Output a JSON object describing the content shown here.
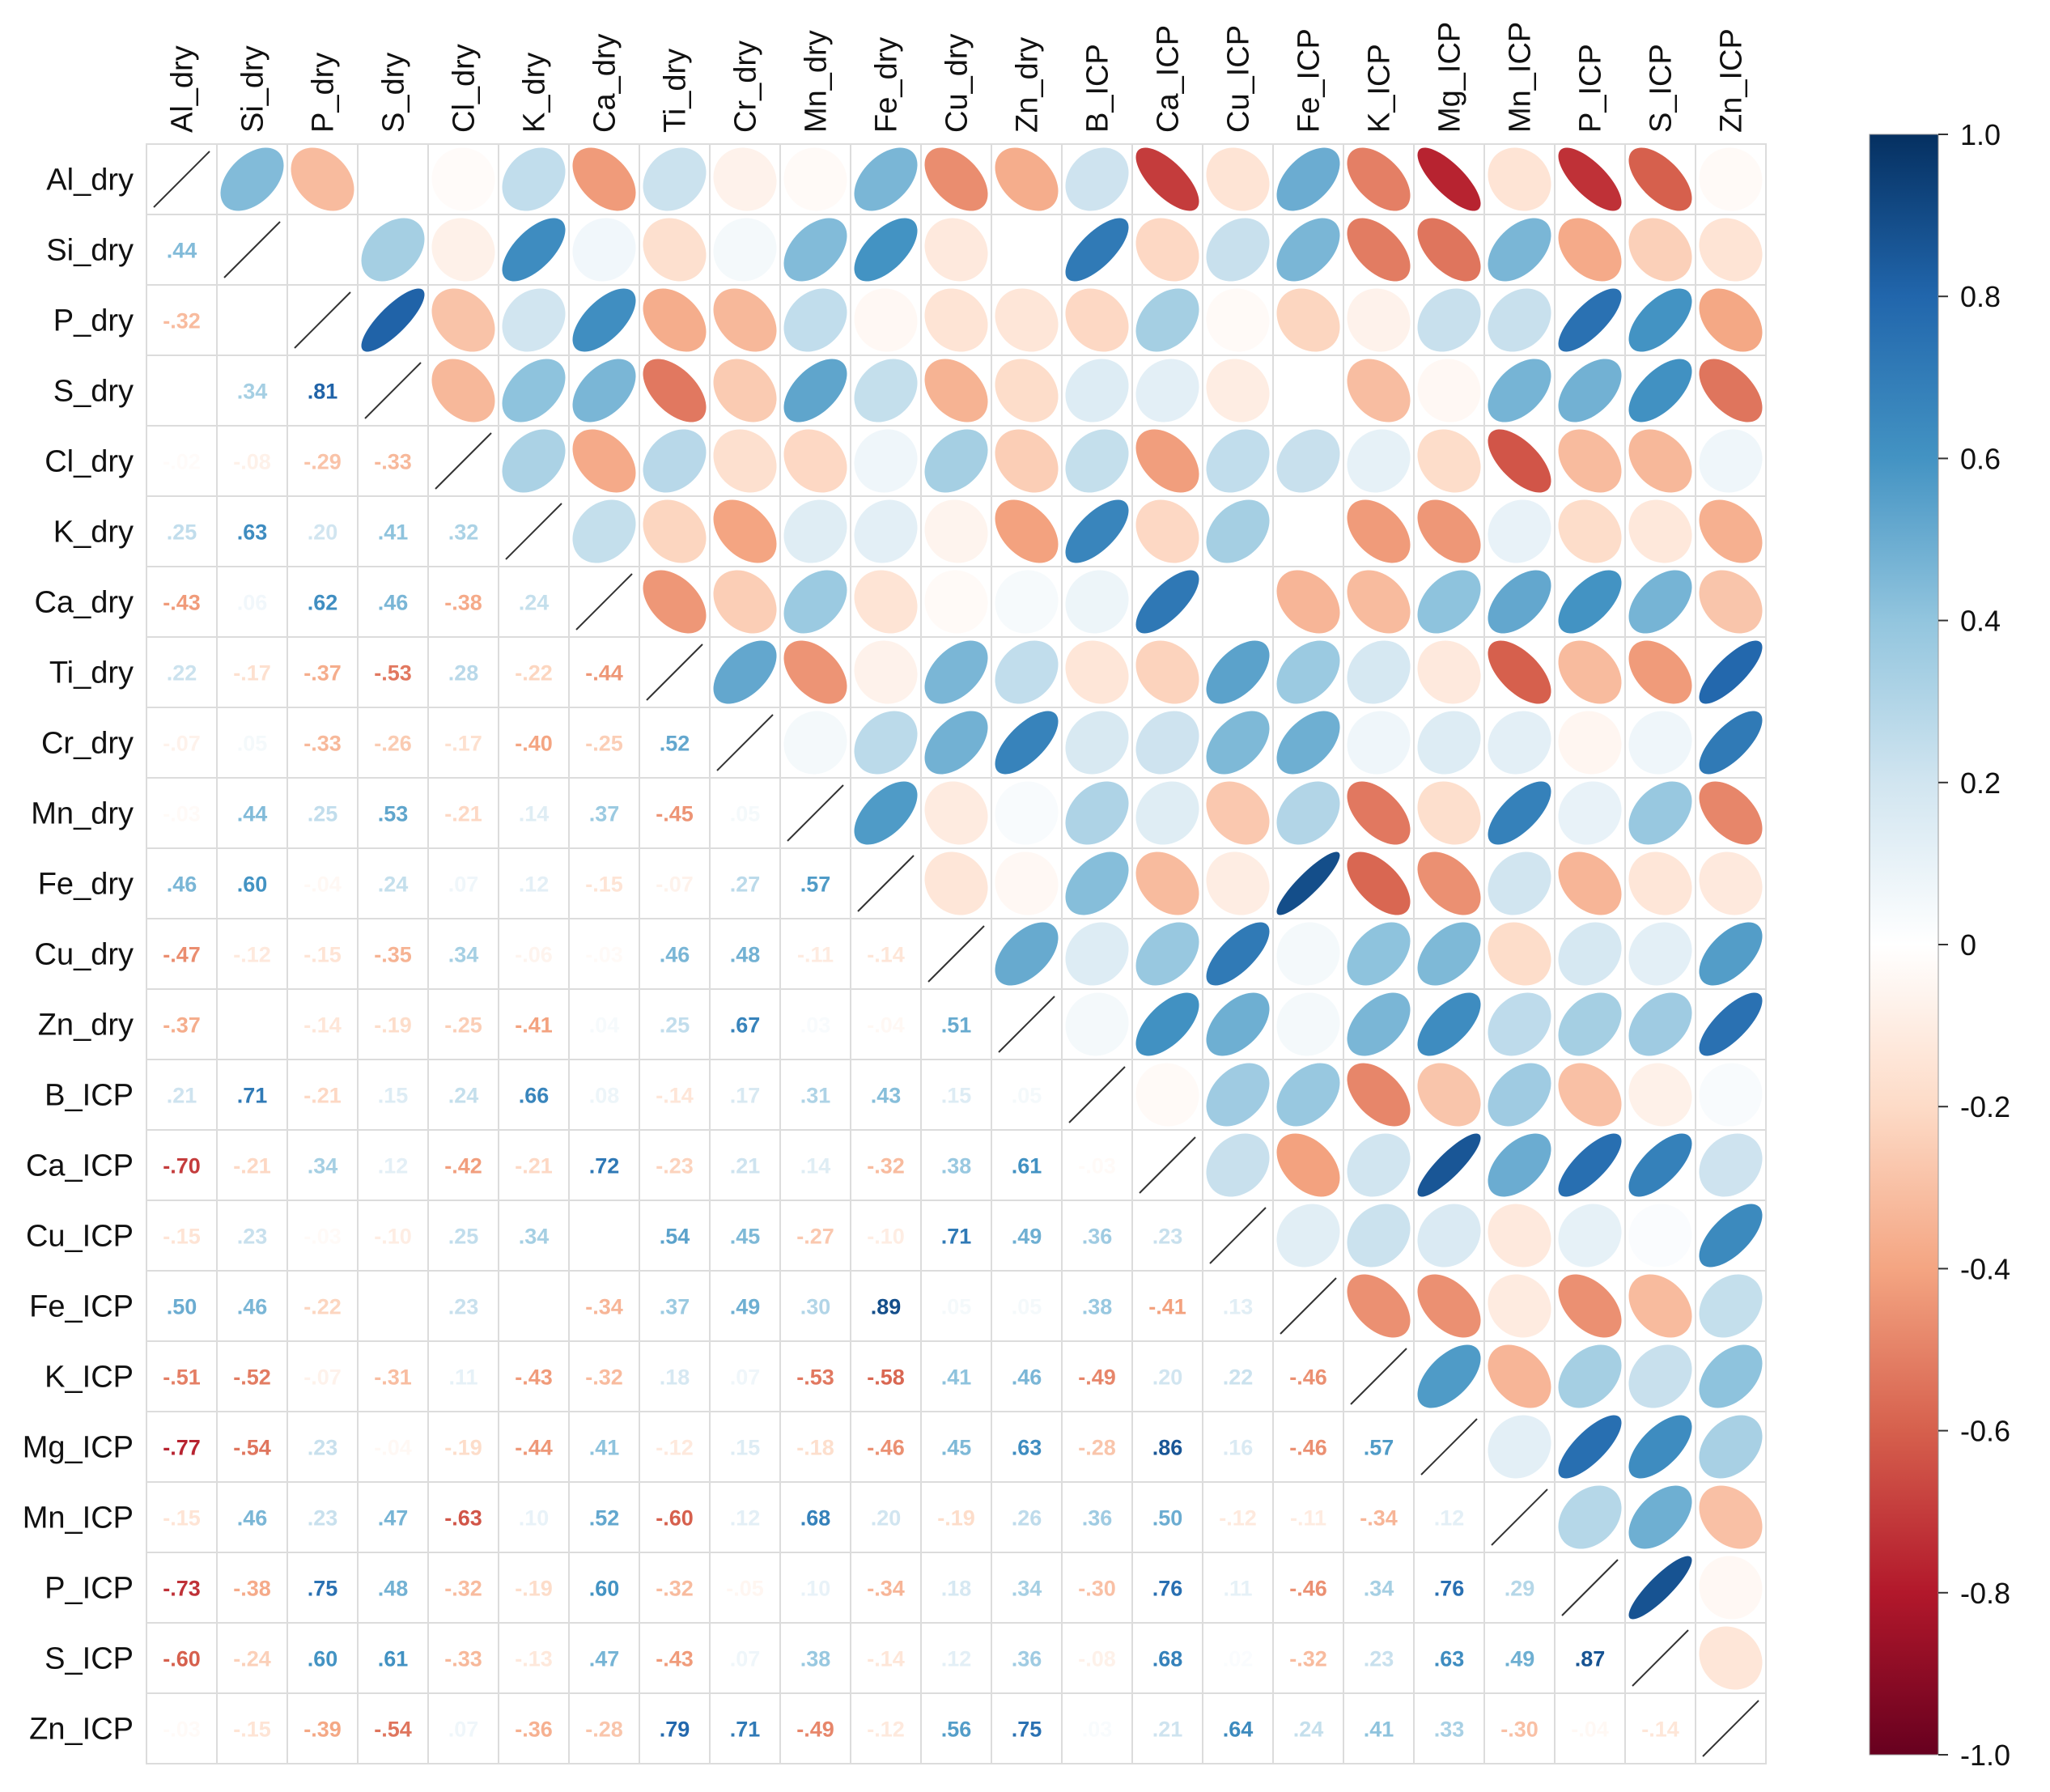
{
  "chart_data": {
    "type": "heatmap",
    "title": "",
    "variables": [
      "Al_dry",
      "Si_dry",
      "P_dry",
      "S_dry",
      "Cl_dry",
      "K_dry",
      "Ca_dry",
      "Ti_dry",
      "Cr_dry",
      "Mn_dry",
      "Fe_dry",
      "Cu_dry",
      "Zn_dry",
      "B_ICP",
      "Ca_ICP",
      "Cu_ICP",
      "Fe_ICP",
      "K_ICP",
      "Mg_ICP",
      "Mn_ICP",
      "P_ICP",
      "S_ICP",
      "Zn_ICP"
    ],
    "lower_triangle_method": "number",
    "upper_triangle_method": "ellipse",
    "diagonal": "line",
    "matrix": [
      [
        1,
        0.44,
        -0.32,
        0.0,
        -0.02,
        0.25,
        -0.43,
        0.22,
        -0.07,
        -0.03,
        0.46,
        -0.47,
        -0.37,
        0.21,
        -0.7,
        -0.15,
        0.5,
        -0.51,
        -0.77,
        -0.15,
        -0.73,
        -0.6,
        -0.03
      ],
      [
        0.44,
        1,
        0.0,
        0.34,
        -0.08,
        0.63,
        0.06,
        -0.17,
        0.05,
        0.44,
        0.6,
        -0.12,
        0.0,
        0.71,
        -0.21,
        0.23,
        0.46,
        -0.52,
        -0.54,
        0.46,
        -0.38,
        -0.24,
        -0.15
      ],
      [
        -0.32,
        0.0,
        1,
        0.81,
        -0.29,
        0.2,
        0.62,
        -0.37,
        -0.33,
        0.25,
        -0.04,
        -0.15,
        -0.14,
        -0.21,
        0.34,
        -0.03,
        -0.22,
        -0.07,
        0.23,
        0.23,
        0.75,
        0.6,
        -0.39
      ],
      [
        0.0,
        0.34,
        0.81,
        1,
        -0.33,
        0.41,
        0.46,
        -0.53,
        -0.26,
        0.53,
        0.24,
        -0.35,
        -0.19,
        0.15,
        0.12,
        -0.1,
        0.0,
        -0.31,
        -0.04,
        0.47,
        0.48,
        0.61,
        -0.54
      ],
      [
        -0.02,
        -0.08,
        -0.29,
        -0.33,
        1,
        0.32,
        -0.38,
        0.28,
        -0.17,
        -0.21,
        0.07,
        0.34,
        -0.25,
        0.24,
        -0.42,
        0.25,
        0.23,
        0.11,
        -0.19,
        -0.63,
        -0.32,
        -0.33,
        0.07
      ],
      [
        0.25,
        0.63,
        0.2,
        0.41,
        0.32,
        1,
        0.24,
        -0.22,
        -0.4,
        0.14,
        0.12,
        -0.06,
        -0.41,
        0.66,
        -0.21,
        0.34,
        0.0,
        -0.43,
        -0.44,
        0.1,
        -0.19,
        -0.13,
        -0.36
      ],
      [
        -0.43,
        0.06,
        0.62,
        0.46,
        -0.38,
        0.24,
        1,
        -0.44,
        -0.25,
        0.37,
        -0.15,
        -0.03,
        0.04,
        0.08,
        0.72,
        0.0,
        -0.34,
        -0.32,
        0.41,
        0.52,
        0.6,
        0.47,
        -0.28
      ],
      [
        0.22,
        -0.17,
        -0.37,
        -0.53,
        0.28,
        -0.22,
        -0.44,
        1,
        0.52,
        -0.45,
        -0.07,
        0.46,
        0.25,
        -0.14,
        -0.23,
        0.54,
        0.37,
        0.18,
        -0.12,
        -0.6,
        -0.32,
        -0.43,
        0.79
      ],
      [
        -0.07,
        0.05,
        -0.33,
        -0.26,
        -0.17,
        -0.4,
        -0.25,
        0.52,
        1,
        0.05,
        0.27,
        0.48,
        0.67,
        0.17,
        0.21,
        0.45,
        0.49,
        0.07,
        0.15,
        0.12,
        -0.05,
        0.07,
        0.71
      ],
      [
        -0.03,
        0.44,
        0.25,
        0.53,
        -0.21,
        0.14,
        0.37,
        -0.45,
        0.05,
        1,
        0.57,
        -0.11,
        0.03,
        0.31,
        0.14,
        -0.27,
        0.3,
        -0.53,
        -0.18,
        0.68,
        0.1,
        0.38,
        -0.49
      ],
      [
        0.46,
        0.6,
        -0.04,
        0.24,
        0.07,
        0.12,
        -0.15,
        -0.07,
        0.27,
        0.57,
        1,
        -0.14,
        -0.04,
        0.43,
        -0.32,
        -0.1,
        0.89,
        -0.58,
        -0.46,
        0.2,
        -0.34,
        -0.14,
        -0.12
      ],
      [
        -0.47,
        -0.12,
        -0.15,
        -0.35,
        0.34,
        -0.06,
        -0.03,
        0.46,
        0.48,
        -0.11,
        -0.14,
        1,
        0.51,
        0.15,
        0.38,
        0.71,
        0.05,
        0.41,
        0.45,
        -0.19,
        0.18,
        0.12,
        0.56
      ],
      [
        -0.37,
        0.0,
        -0.14,
        -0.19,
        -0.25,
        -0.41,
        0.04,
        0.25,
        0.67,
        0.03,
        -0.04,
        0.51,
        1,
        0.05,
        0.61,
        0.49,
        0.05,
        0.46,
        0.63,
        0.26,
        0.34,
        0.36,
        0.75
      ],
      [
        0.21,
        0.71,
        -0.21,
        0.15,
        0.24,
        0.66,
        0.08,
        -0.14,
        0.17,
        0.31,
        0.43,
        0.15,
        0.05,
        1,
        -0.03,
        0.36,
        0.38,
        -0.49,
        -0.28,
        0.36,
        -0.3,
        -0.08,
        0.03
      ],
      [
        -0.7,
        -0.21,
        0.34,
        0.12,
        -0.42,
        -0.21,
        0.72,
        -0.23,
        0.21,
        0.14,
        -0.32,
        0.38,
        0.61,
        -0.03,
        1,
        0.23,
        -0.41,
        0.2,
        0.86,
        0.5,
        0.76,
        0.68,
        0.21
      ],
      [
        -0.15,
        0.23,
        -0.03,
        -0.1,
        0.25,
        0.34,
        0.0,
        0.54,
        0.45,
        -0.27,
        -0.1,
        0.71,
        0.49,
        0.36,
        0.23,
        1,
        0.13,
        0.22,
        0.16,
        -0.12,
        0.11,
        0.02,
        0.64
      ],
      [
        0.5,
        0.46,
        -0.22,
        0.0,
        0.23,
        0.0,
        -0.34,
        0.37,
        0.49,
        0.3,
        0.89,
        0.05,
        0.05,
        0.38,
        -0.41,
        0.13,
        1,
        -0.46,
        -0.46,
        -0.11,
        -0.46,
        -0.32,
        0.24
      ],
      [
        -0.51,
        -0.52,
        -0.07,
        -0.31,
        0.11,
        -0.43,
        -0.32,
        0.18,
        0.07,
        -0.53,
        -0.58,
        0.41,
        0.46,
        -0.49,
        0.2,
        0.22,
        -0.46,
        1,
        0.57,
        -0.34,
        0.34,
        0.23,
        0.41
      ],
      [
        -0.77,
        -0.54,
        0.23,
        -0.04,
        -0.19,
        -0.44,
        0.41,
        -0.12,
        0.15,
        -0.18,
        -0.46,
        0.45,
        0.63,
        -0.28,
        0.86,
        0.16,
        -0.46,
        0.57,
        1,
        0.12,
        0.76,
        0.63,
        0.33
      ],
      [
        -0.15,
        0.46,
        0.23,
        0.47,
        -0.63,
        0.1,
        0.52,
        -0.6,
        0.12,
        0.68,
        0.2,
        -0.19,
        0.26,
        0.36,
        0.5,
        -0.12,
        -0.11,
        -0.34,
        0.12,
        1,
        0.29,
        0.49,
        -0.3
      ],
      [
        -0.73,
        -0.38,
        0.75,
        0.48,
        -0.32,
        -0.19,
        0.6,
        -0.32,
        -0.05,
        0.1,
        -0.34,
        0.18,
        0.34,
        -0.3,
        0.76,
        0.11,
        -0.46,
        0.34,
        0.76,
        0.29,
        1,
        0.87,
        -0.04
      ],
      [
        -0.6,
        -0.24,
        0.6,
        0.61,
        -0.33,
        -0.13,
        0.47,
        -0.43,
        0.07,
        0.38,
        -0.14,
        0.12,
        0.36,
        -0.08,
        0.68,
        0.02,
        -0.32,
        0.23,
        0.63,
        0.49,
        0.87,
        1,
        -0.14
      ],
      [
        -0.03,
        -0.15,
        -0.39,
        -0.54,
        0.07,
        -0.36,
        -0.28,
        0.79,
        0.71,
        -0.49,
        -0.12,
        0.56,
        0.75,
        0.03,
        0.21,
        0.64,
        0.24,
        0.41,
        0.33,
        -0.3,
        -0.04,
        -0.14,
        1
      ]
    ],
    "color_scale": {
      "min": -1.0,
      "max": 1.0,
      "ticks": [
        "1.0",
        "0.8",
        "0.6",
        "0.4",
        "0.2",
        "0",
        "-0.2",
        "-0.4",
        "-0.6",
        "-0.8",
        "-1.0"
      ],
      "stops": [
        "#67001F",
        "#B2182B",
        "#D6604D",
        "#F4A582",
        "#FDDBC7",
        "#FFFFFF",
        "#D1E5F0",
        "#92C5DE",
        "#4393C3",
        "#2166AC",
        "#053061"
      ]
    }
  }
}
